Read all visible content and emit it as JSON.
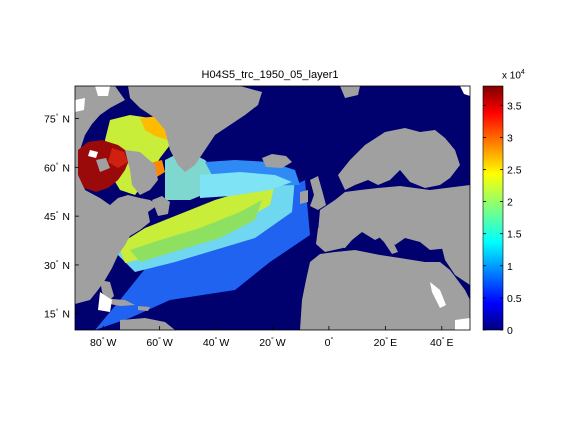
{
  "title": "H04S5_trc_1950_05_layer1",
  "lat_ticks": [
    {
      "label": "75",
      "dir": "N",
      "value": 75
    },
    {
      "label": "60",
      "dir": "N",
      "value": 60
    },
    {
      "label": "45",
      "dir": "N",
      "value": 45
    },
    {
      "label": "30",
      "dir": "N",
      "value": 30
    },
    {
      "label": "15",
      "dir": "N",
      "value": 15
    }
  ],
  "lon_ticks": [
    {
      "label": "80",
      "dir": "W",
      "value": -80
    },
    {
      "label": "60",
      "dir": "W",
      "value": -60
    },
    {
      "label": "40",
      "dir": "W",
      "value": -40
    },
    {
      "label": "20",
      "dir": "W",
      "value": -20
    },
    {
      "label": "0",
      "dir": "",
      "value": 0
    },
    {
      "label": "20",
      "dir": "E",
      "value": 20
    },
    {
      "label": "40",
      "dir": "E",
      "value": 40
    }
  ],
  "colorbar": {
    "multiplier_base": "x 10",
    "multiplier_exp": "4",
    "ticks": [
      "0",
      "0.5",
      "1",
      "1.5",
      "2",
      "2.5",
      "3",
      "3.5"
    ],
    "tick_values": [
      0,
      0.5,
      1,
      1.5,
      2,
      2.5,
      3,
      3.5
    ],
    "min": 0,
    "max": 3.8
  },
  "map_extent": {
    "lon_min": -90,
    "lon_max": 50,
    "lat_min": 10,
    "lat_max": 85
  },
  "colors": {
    "ocean": "#00006e",
    "land": "#a0a0a0",
    "white": "#ffffff"
  }
}
